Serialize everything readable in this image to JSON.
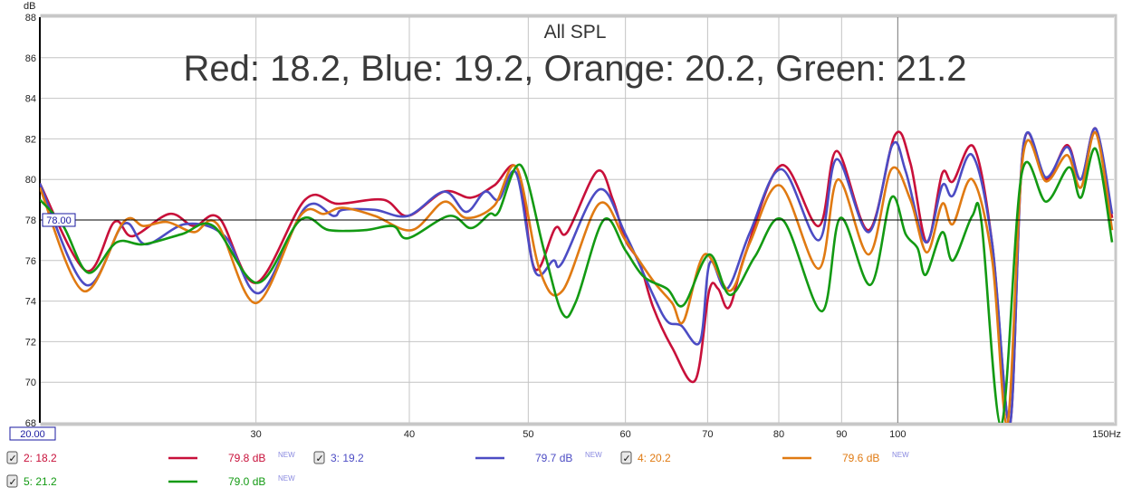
{
  "chart_data": {
    "type": "line",
    "title": "All SPL",
    "subtitle": "Red: 18.2, Blue: 19.2, Orange: 20.2, Green: 21.2",
    "ylabel": "dB",
    "xunit": "Hz",
    "xscale": "log",
    "xlim": [
      20,
      150
    ],
    "ylim": [
      68,
      88
    ],
    "grid": true,
    "yticks": [
      "68",
      "70",
      "72",
      "74",
      "76",
      "78",
      "80",
      "82",
      "84",
      "86",
      "88"
    ],
    "xticks": [
      {
        "v": 30,
        "label": "30"
      },
      {
        "v": 40,
        "label": "40"
      },
      {
        "v": 50,
        "label": "50"
      },
      {
        "v": 60,
        "label": "60"
      },
      {
        "v": 70,
        "label": "70"
      },
      {
        "v": 80,
        "label": "80"
      },
      {
        "v": 90,
        "label": "90"
      },
      {
        "v": 100,
        "label": "100"
      }
    ],
    "x_start_label": "20.00",
    "x_end_label": "150Hz",
    "cursor": {
      "value": 78.0,
      "label": "78.00"
    },
    "series": [
      {
        "name": "2: 18.2",
        "color": "#c8103a",
        "level": "79.8 dB",
        "badge": "NEW",
        "checked": true,
        "points": [
          [
            20,
            79.8
          ],
          [
            21.8,
            75.5
          ],
          [
            23.0,
            77.9
          ],
          [
            23.8,
            77.2
          ],
          [
            25.5,
            78.3
          ],
          [
            26.7,
            77.7
          ],
          [
            28.0,
            78.1
          ],
          [
            30.0,
            74.9
          ],
          [
            32.9,
            79.0
          ],
          [
            35.0,
            78.8
          ],
          [
            38.1,
            79.0
          ],
          [
            39.9,
            78.2
          ],
          [
            42.7,
            79.4
          ],
          [
            44.9,
            79.1
          ],
          [
            46.9,
            79.7
          ],
          [
            49.0,
            80.5
          ],
          [
            50.6,
            75.6
          ],
          [
            52.6,
            77.6
          ],
          [
            53.8,
            77.4
          ],
          [
            56.9,
            80.4
          ],
          [
            58.6,
            79.0
          ],
          [
            60.0,
            77.0
          ],
          [
            61.6,
            75.9
          ],
          [
            63.2,
            73.7
          ],
          [
            65.5,
            71.7
          ],
          [
            68.4,
            70.1
          ],
          [
            70.2,
            74.5
          ],
          [
            71.4,
            74.6
          ],
          [
            72.9,
            73.7
          ],
          [
            75.2,
            76.4
          ],
          [
            80.4,
            80.7
          ],
          [
            86.2,
            77.7
          ],
          [
            89.2,
            81.4
          ],
          [
            94.7,
            77.5
          ],
          [
            99.5,
            82.2
          ],
          [
            102.4,
            80.8
          ],
          [
            105.6,
            76.9
          ],
          [
            108.7,
            80.3
          ],
          [
            110.9,
            79.9
          ],
          [
            115.3,
            81.6
          ],
          [
            119.4,
            76.8
          ],
          [
            123.4,
            60
          ],
          [
            126.6,
            81.7
          ],
          [
            132.1,
            80.0
          ],
          [
            137.4,
            81.7
          ],
          [
            141.0,
            80.0
          ],
          [
            145.0,
            82.5
          ],
          [
            149.5,
            78.1
          ]
        ]
      },
      {
        "name": "3: 19.2",
        "color": "#4c4cc4",
        "level": "79.7 dB",
        "badge": "NEW",
        "checked": true,
        "points": [
          [
            20,
            79.8
          ],
          [
            21.8,
            74.8
          ],
          [
            23.4,
            77.8
          ],
          [
            24.4,
            76.8
          ],
          [
            26.3,
            77.8
          ],
          [
            28.3,
            77.2
          ],
          [
            30.2,
            74.4
          ],
          [
            32.9,
            78.6
          ],
          [
            34.7,
            78.2
          ],
          [
            35.3,
            78.5
          ],
          [
            37.5,
            78.5
          ],
          [
            39.9,
            78.2
          ],
          [
            42.7,
            79.4
          ],
          [
            44.5,
            78.4
          ],
          [
            46.1,
            79.4
          ],
          [
            47.3,
            79.0
          ],
          [
            48.9,
            80.3
          ],
          [
            50.6,
            75.5
          ],
          [
            52.4,
            76.0
          ],
          [
            53.3,
            75.9
          ],
          [
            57.1,
            79.5
          ],
          [
            60.0,
            77.3
          ],
          [
            63.2,
            74.3
          ],
          [
            64.9,
            73.0
          ],
          [
            66.6,
            72.8
          ],
          [
            69.0,
            72.0
          ],
          [
            70.3,
            75.9
          ],
          [
            72.6,
            74.6
          ],
          [
            75.8,
            77.4
          ],
          [
            80.4,
            80.5
          ],
          [
            86.2,
            77.0
          ],
          [
            89.2,
            81.0
          ],
          [
            94.7,
            77.4
          ],
          [
            99.0,
            81.7
          ],
          [
            101.5,
            80.4
          ],
          [
            105.4,
            76.9
          ],
          [
            108.7,
            79.7
          ],
          [
            110.9,
            79.2
          ],
          [
            115.0,
            81.2
          ],
          [
            119.4,
            76.8
          ],
          [
            123.4,
            60
          ],
          [
            126.6,
            81.7
          ],
          [
            132.1,
            80.1
          ],
          [
            137.4,
            81.6
          ],
          [
            141.0,
            80.0
          ],
          [
            145.0,
            82.5
          ],
          [
            149.5,
            78.3
          ]
        ]
      },
      {
        "name": "4: 20.2",
        "color": "#e07a12",
        "level": "79.6 dB",
        "badge": "NEW",
        "checked": true,
        "points": [
          [
            20,
            79.6
          ],
          [
            21.7,
            74.5
          ],
          [
            23.4,
            77.9
          ],
          [
            24.3,
            77.7
          ],
          [
            25.4,
            77.9
          ],
          [
            26.7,
            77.4
          ],
          [
            27.9,
            77.8
          ],
          [
            30.0,
            73.9
          ],
          [
            32.6,
            78.2
          ],
          [
            34.1,
            78.3
          ],
          [
            35.3,
            78.6
          ],
          [
            37.5,
            78.2
          ],
          [
            40.2,
            77.5
          ],
          [
            42.7,
            78.9
          ],
          [
            44.5,
            78.1
          ],
          [
            46.9,
            78.7
          ],
          [
            48.9,
            80.6
          ],
          [
            51.1,
            75.5
          ],
          [
            53.3,
            74.5
          ],
          [
            57.1,
            78.8
          ],
          [
            60.0,
            77.0
          ],
          [
            63.2,
            75.0
          ],
          [
            65.5,
            73.9
          ],
          [
            66.9,
            73.0
          ],
          [
            69.6,
            76.3
          ],
          [
            73.0,
            74.5
          ],
          [
            75.8,
            76.9
          ],
          [
            80.2,
            79.7
          ],
          [
            86.2,
            75.6
          ],
          [
            89.4,
            80.0
          ],
          [
            94.7,
            76.3
          ],
          [
            98.8,
            80.5
          ],
          [
            102.4,
            79.0
          ],
          [
            105.6,
            76.4
          ],
          [
            108.7,
            78.8
          ],
          [
            110.9,
            77.8
          ],
          [
            115.0,
            80.0
          ],
          [
            119.4,
            76.0
          ],
          [
            122.8,
            60
          ],
          [
            126.6,
            81.3
          ],
          [
            132.1,
            79.9
          ],
          [
            137.4,
            81.2
          ],
          [
            141.0,
            79.6
          ],
          [
            145.0,
            82.3
          ],
          [
            149.5,
            77.5
          ]
        ]
      },
      {
        "name": "5: 21.2",
        "color": "#139a13",
        "level": "79.0 dB",
        "badge": "NEW",
        "checked": true,
        "points": [
          [
            20,
            79.0
          ],
          [
            20.9,
            77.7
          ],
          [
            21.9,
            75.4
          ],
          [
            23.1,
            76.9
          ],
          [
            24.3,
            76.8
          ],
          [
            26.1,
            77.3
          ],
          [
            27.7,
            77.7
          ],
          [
            30.1,
            74.9
          ],
          [
            32.6,
            78.0
          ],
          [
            34.4,
            77.5
          ],
          [
            36.8,
            77.5
          ],
          [
            38.8,
            77.7
          ],
          [
            39.9,
            77.1
          ],
          [
            43.1,
            78.2
          ],
          [
            44.9,
            77.6
          ],
          [
            46.5,
            78.3
          ],
          [
            47.3,
            78.4
          ],
          [
            49.3,
            80.7
          ],
          [
            51.5,
            76.5
          ],
          [
            53.3,
            73.4
          ],
          [
            54.7,
            74.0
          ],
          [
            57.6,
            78.0
          ],
          [
            60.0,
            76.5
          ],
          [
            62.1,
            75.2
          ],
          [
            64.9,
            74.6
          ],
          [
            66.9,
            73.8
          ],
          [
            70.2,
            76.3
          ],
          [
            73.0,
            74.3
          ],
          [
            76.5,
            76.2
          ],
          [
            80.6,
            78.0
          ],
          [
            86.7,
            73.5
          ],
          [
            89.8,
            78.1
          ],
          [
            95.0,
            74.8
          ],
          [
            98.8,
            79.1
          ],
          [
            101.5,
            77.3
          ],
          [
            103.8,
            76.6
          ],
          [
            105.4,
            75.3
          ],
          [
            108.7,
            77.4
          ],
          [
            110.9,
            76.0
          ],
          [
            115.0,
            78.2
          ],
          [
            117.0,
            77.9
          ],
          [
            121.4,
            60
          ],
          [
            126.2,
            80.3
          ],
          [
            132.1,
            78.9
          ],
          [
            137.9,
            80.6
          ],
          [
            141.0,
            79.1
          ],
          [
            145.0,
            81.5
          ],
          [
            149.5,
            76.9
          ]
        ]
      }
    ]
  }
}
